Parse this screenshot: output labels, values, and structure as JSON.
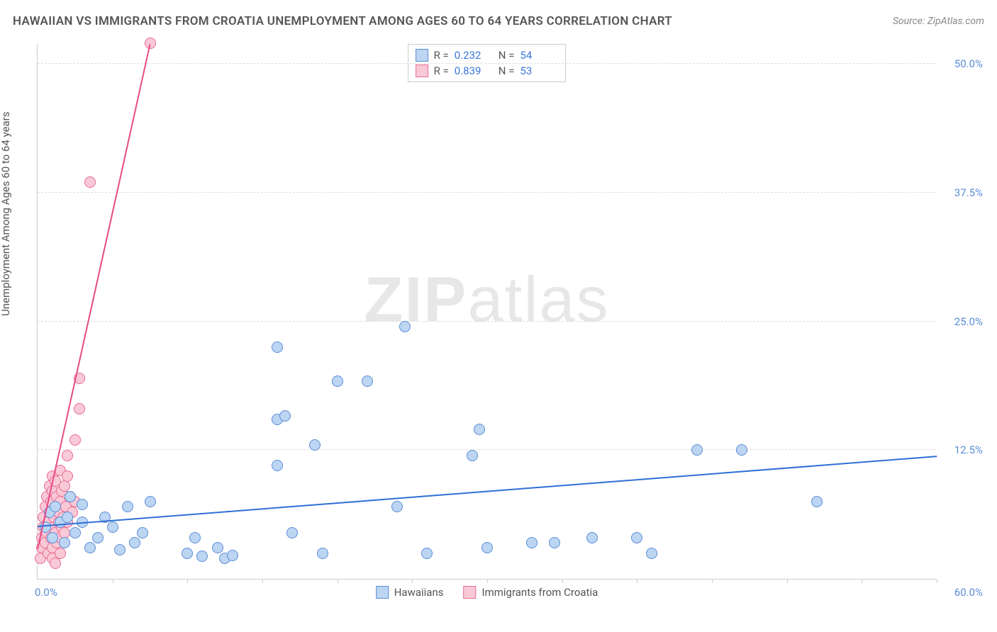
{
  "title": "HAWAIIAN VS IMMIGRANTS FROM CROATIA UNEMPLOYMENT AMONG AGES 60 TO 64 YEARS CORRELATION CHART",
  "source": "Source: ZipAtlas.com",
  "watermark_bold": "ZIP",
  "watermark_rest": "atlas",
  "y_axis_label": "Unemployment Among Ages 60 to 64 years",
  "chart": {
    "type": "scatter",
    "xlim": [
      0,
      60
    ],
    "ylim": [
      0,
      52
    ],
    "x_tick_positions": [
      5,
      10,
      15,
      20,
      25,
      30,
      35,
      40,
      45,
      50,
      55,
      60
    ],
    "y_ticks": [
      {
        "v": 12.5,
        "label": "12.5%"
      },
      {
        "v": 25.0,
        "label": "25.0%"
      },
      {
        "v": 37.5,
        "label": "37.5%"
      },
      {
        "v": 50.0,
        "label": "50.0%"
      }
    ],
    "x_origin_label": "0.0%",
    "x_end_label": "60.0%",
    "grid_color": "#dddddd",
    "background_color": "#ffffff",
    "marker_radius": 8,
    "marker_border": 1.5,
    "series": [
      {
        "name": "Hawaiians",
        "color_fill": "#bcd5f2",
        "color_stroke": "#5b8dd6",
        "line_color": "#2f6fd6",
        "trend": {
          "x1": 0,
          "y1": 5.2,
          "x2": 60,
          "y2": 12.0
        },
        "R": "0.232",
        "N": "54",
        "points": [
          [
            0.5,
            5.0
          ],
          [
            0.8,
            6.5
          ],
          [
            1.0,
            4.0
          ],
          [
            1.2,
            7.0
          ],
          [
            1.5,
            5.5
          ],
          [
            1.8,
            3.5
          ],
          [
            2.0,
            6.0
          ],
          [
            2.2,
            8.0
          ],
          [
            2.5,
            4.5
          ],
          [
            3.0,
            5.5
          ],
          [
            3.0,
            7.2
          ],
          [
            3.5,
            3.0
          ],
          [
            4.0,
            4.0
          ],
          [
            4.5,
            6.0
          ],
          [
            5.0,
            5.0
          ],
          [
            5.5,
            2.8
          ],
          [
            6.0,
            7.0
          ],
          [
            6.5,
            3.5
          ],
          [
            7.0,
            4.5
          ],
          [
            7.5,
            7.5
          ],
          [
            10.0,
            2.5
          ],
          [
            10.5,
            4.0
          ],
          [
            11.0,
            2.2
          ],
          [
            12.0,
            3.0
          ],
          [
            12.5,
            2.0
          ],
          [
            13.0,
            2.3
          ],
          [
            16.0,
            11.0
          ],
          [
            16.0,
            15.5
          ],
          [
            16.5,
            15.8
          ],
          [
            16.0,
            22.5
          ],
          [
            17.0,
            4.5
          ],
          [
            18.5,
            13.0
          ],
          [
            19.0,
            2.5
          ],
          [
            20.0,
            19.2
          ],
          [
            22.0,
            19.2
          ],
          [
            24.5,
            24.5
          ],
          [
            24.0,
            7.0
          ],
          [
            26.0,
            2.5
          ],
          [
            29.0,
            12.0
          ],
          [
            29.5,
            14.5
          ],
          [
            30.0,
            3.0
          ],
          [
            33.0,
            3.5
          ],
          [
            34.5,
            3.5
          ],
          [
            37.0,
            4.0
          ],
          [
            40.0,
            4.0
          ],
          [
            41.0,
            2.5
          ],
          [
            44.0,
            12.5
          ],
          [
            47.0,
            12.5
          ],
          [
            52.0,
            7.5
          ]
        ]
      },
      {
        "name": "Immigrants from Croatia",
        "color_fill": "#f9c9d7",
        "color_stroke": "#e86a93",
        "line_color": "#e84a86",
        "trend": {
          "x1": 0,
          "y1": 3.0,
          "x2": 7.5,
          "y2": 52.0
        },
        "R": "0.839",
        "N": "53",
        "points": [
          [
            0.2,
            2.0
          ],
          [
            0.3,
            3.0
          ],
          [
            0.3,
            4.0
          ],
          [
            0.4,
            5.0
          ],
          [
            0.4,
            6.0
          ],
          [
            0.5,
            3.5
          ],
          [
            0.5,
            7.0
          ],
          [
            0.6,
            4.5
          ],
          [
            0.6,
            8.0
          ],
          [
            0.7,
            5.5
          ],
          [
            0.7,
            2.5
          ],
          [
            0.8,
            6.5
          ],
          [
            0.8,
            9.0
          ],
          [
            0.9,
            4.0
          ],
          [
            0.9,
            7.5
          ],
          [
            1.0,
            3.0
          ],
          [
            1.0,
            8.5
          ],
          [
            1.0,
            10.0
          ],
          [
            1.1,
            5.0
          ],
          [
            1.1,
            6.0
          ],
          [
            1.2,
            4.5
          ],
          [
            1.2,
            7.0
          ],
          [
            1.2,
            9.5
          ],
          [
            1.3,
            3.5
          ],
          [
            1.3,
            8.0
          ],
          [
            1.4,
            5.5
          ],
          [
            1.4,
            6.5
          ],
          [
            1.5,
            4.0
          ],
          [
            1.5,
            7.5
          ],
          [
            1.5,
            10.5
          ],
          [
            1.6,
            5.0
          ],
          [
            1.6,
            8.5
          ],
          [
            1.7,
            6.0
          ],
          [
            1.8,
            9.0
          ],
          [
            1.8,
            4.5
          ],
          [
            1.9,
            7.0
          ],
          [
            2.0,
            5.5
          ],
          [
            2.0,
            10.0
          ],
          [
            2.0,
            12.0
          ],
          [
            2.2,
            8.0
          ],
          [
            2.3,
            6.5
          ],
          [
            2.5,
            13.5
          ],
          [
            2.5,
            7.5
          ],
          [
            2.8,
            16.5
          ],
          [
            2.8,
            19.5
          ],
          [
            1.0,
            2.0
          ],
          [
            1.2,
            1.5
          ],
          [
            1.5,
            2.5
          ],
          [
            3.5,
            38.5
          ],
          [
            7.5,
            52.0
          ]
        ]
      }
    ]
  },
  "stats_legend": {
    "rows": [
      {
        "swatch_fill": "#bcd5f2",
        "swatch_stroke": "#5b8dd6",
        "r_label": "R =",
        "r_val": "0.232",
        "n_label": "N =",
        "n_val": "54"
      },
      {
        "swatch_fill": "#f9c9d7",
        "swatch_stroke": "#e86a93",
        "r_label": "R =",
        "r_val": "0.839",
        "n_label": "N =",
        "n_val": "53"
      }
    ]
  },
  "bottom_legend": {
    "items": [
      {
        "swatch_fill": "#bcd5f2",
        "swatch_stroke": "#5b8dd6",
        "label": "Hawaiians"
      },
      {
        "swatch_fill": "#f9c9d7",
        "swatch_stroke": "#e86a93",
        "label": "Immigrants from Croatia"
      }
    ]
  }
}
